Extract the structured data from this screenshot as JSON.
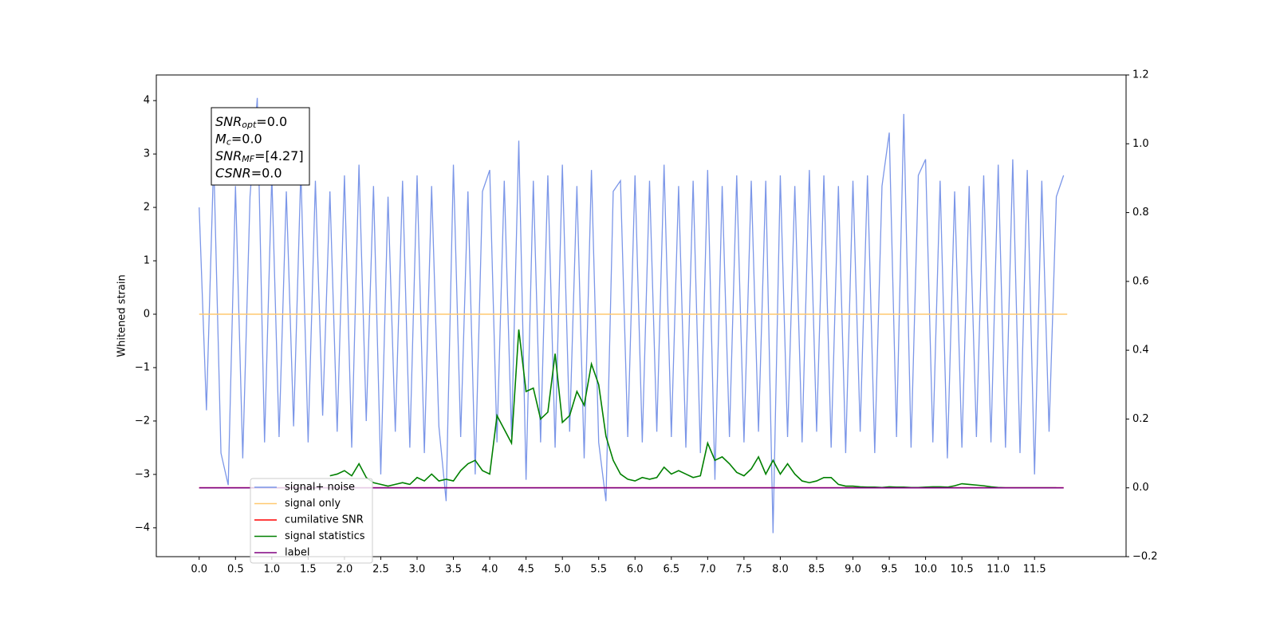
{
  "chart_data": {
    "type": "line",
    "ylabel": "Whitened strain",
    "xlim": [
      -0.59,
      12.76
    ],
    "ylim": [
      -4.54,
      4.48
    ],
    "y2lim": [
      -0.2,
      1.2
    ],
    "xticks": [
      {
        "value": 0,
        "label": "0.0"
      },
      0.5,
      {
        "value": 1,
        "label": "1.0"
      },
      1.5,
      {
        "value": 2,
        "label": "2.0"
      },
      2.5,
      {
        "value": 3,
        "label": "3.0"
      },
      3.5,
      {
        "value": 4,
        "label": "4.0"
      },
      4.5,
      {
        "value": 5,
        "label": "5.0"
      },
      5.5,
      {
        "value": 6,
        "label": "6.0"
      },
      6.5,
      {
        "value": 7,
        "label": "7.0"
      },
      7.5,
      {
        "value": 8,
        "label": "8.0"
      },
      8.5,
      {
        "value": 9,
        "label": "9.0"
      },
      9.5,
      {
        "value": 10,
        "label": "10.0"
      },
      10.5,
      {
        "value": 11,
        "label": "11.0"
      },
      11.5
    ],
    "yticks": [
      {
        "value": -4,
        "label": "−4"
      },
      {
        "value": -3,
        "label": "−3"
      },
      {
        "value": -2,
        "label": "−2"
      },
      {
        "value": -1,
        "label": "−1"
      },
      0,
      1,
      2,
      3,
      4
    ],
    "y2ticks": [
      {
        "value": -0.2,
        "label": "−0.2"
      },
      {
        "value": 0,
        "label": "0.0"
      },
      0.2,
      0.4,
      0.6,
      0.8,
      {
        "value": 1,
        "label": "1.0"
      },
      1.2
    ],
    "legend": "lower left",
    "annotation": [
      {
        "main": "SNR",
        "sub": "opt",
        "rest": "=0.0"
      },
      {
        "main": "M",
        "sub": "c",
        "rest": "=0.0"
      },
      {
        "main": "SNR",
        "sub": "MF",
        "rest": "=[4.27]"
      },
      {
        "main": "CSNR",
        "rest": "=0.0"
      }
    ],
    "series": [
      {
        "name": "signal+ noise",
        "color": "#7b96e8",
        "axis": "y",
        "x": [
          0,
          0.1,
          0.2,
          0.3,
          0.4,
          0.5,
          0.6,
          0.7,
          0.8,
          0.9,
          1,
          1.1,
          1.2,
          1.3,
          1.4,
          1.5,
          1.6,
          1.7,
          1.8,
          1.9,
          2,
          2.1,
          2.2,
          2.3,
          2.4,
          2.5,
          2.6,
          2.7,
          2.8,
          2.9,
          3,
          3.1,
          3.2,
          3.3,
          3.4,
          3.5,
          3.6,
          3.7,
          3.8,
          3.9,
          4,
          4.1,
          4.2,
          4.3,
          4.4,
          4.5,
          4.6,
          4.7,
          4.8,
          4.9,
          5,
          5.1,
          5.2,
          5.3,
          5.4,
          5.5,
          5.6,
          5.7,
          5.8,
          5.9,
          6,
          6.1,
          6.2,
          6.3,
          6.4,
          6.5,
          6.6,
          6.7,
          6.8,
          6.9,
          7,
          7.1,
          7.2,
          7.3,
          7.4,
          7.5,
          7.6,
          7.7,
          7.8,
          7.9,
          8,
          8.1,
          8.2,
          8.3,
          8.4,
          8.5,
          8.6,
          8.7,
          8.8,
          8.9,
          9,
          9.1,
          9.2,
          9.3,
          9.4,
          9.5,
          9.6,
          9.7,
          9.8,
          9.9,
          10,
          10.1,
          10.2,
          10.3,
          10.4,
          10.5,
          10.6,
          10.7,
          10.8,
          10.9,
          11,
          11.1,
          11.2,
          11.3,
          11.4,
          11.5,
          11.6,
          11.7,
          11.8,
          11.9
        ],
        "values": [
          2.0,
          -1.8,
          2.9,
          -2.6,
          -3.2,
          2.4,
          -2.7,
          2.2,
          4.05,
          -2.4,
          2.6,
          -2.3,
          2.3,
          -2.1,
          2.7,
          -2.4,
          2.5,
          -1.9,
          2.3,
          -2.2,
          2.6,
          -2.5,
          2.8,
          -2.0,
          2.4,
          -3.0,
          2.2,
          -2.2,
          2.5,
          -2.5,
          2.6,
          -2.6,
          2.4,
          -2.1,
          -3.5,
          2.8,
          -2.3,
          2.3,
          -3.0,
          2.3,
          2.7,
          -2.4,
          2.5,
          -2.3,
          3.25,
          -3.1,
          2.5,
          -2.4,
          2.6,
          -2.5,
          2.8,
          -2.2,
          2.4,
          -2.7,
          2.7,
          -2.4,
          -3.5,
          2.3,
          2.5,
          -2.3,
          2.6,
          -2.4,
          2.5,
          -2.2,
          2.8,
          -2.3,
          2.4,
          -2.5,
          2.5,
          -2.6,
          2.7,
          -3.1,
          2.4,
          -2.3,
          2.6,
          -2.4,
          2.5,
          -2.2,
          2.5,
          -4.1,
          2.6,
          -2.3,
          2.4,
          -2.4,
          2.7,
          -2.2,
          2.6,
          -2.5,
          2.4,
          -2.6,
          2.5,
          -2.2,
          2.6,
          -2.6,
          2.4,
          3.4,
          -2.3,
          3.75,
          -2.5,
          2.6,
          2.9,
          -2.4,
          2.5,
          -2.7,
          2.3,
          -2.5,
          2.4,
          -2.3,
          2.6,
          -2.4,
          2.8,
          -2.5,
          2.9,
          -2.6,
          2.7,
          -3.0,
          2.5,
          -2.2,
          2.2,
          2.6
        ]
      },
      {
        "name": "signal only",
        "color": "#ffc970",
        "axis": "y",
        "x": [
          0,
          11.95
        ],
        "values": [
          0,
          0
        ]
      },
      {
        "name": "cumilative SNR",
        "color": "#ff0000",
        "axis": "y2",
        "x": [
          0,
          11.9
        ],
        "values": [
          0,
          0
        ]
      },
      {
        "name": "signal statistics",
        "color": "#008000",
        "axis": "y2",
        "x": [
          1.8,
          1.9,
          2,
          2.1,
          2.2,
          2.3,
          2.4,
          2.5,
          2.6,
          2.7,
          2.8,
          2.9,
          3,
          3.1,
          3.2,
          3.3,
          3.4,
          3.5,
          3.6,
          3.7,
          3.8,
          3.9,
          4,
          4.1,
          4.2,
          4.3,
          4.4,
          4.5,
          4.6,
          4.7,
          4.8,
          4.9,
          5,
          5.1,
          5.2,
          5.3,
          5.4,
          5.5,
          5.6,
          5.7,
          5.8,
          5.9,
          6,
          6.1,
          6.2,
          6.3,
          6.4,
          6.5,
          6.6,
          6.7,
          6.8,
          6.9,
          7,
          7.1,
          7.2,
          7.3,
          7.4,
          7.5,
          7.6,
          7.7,
          7.8,
          7.9,
          8,
          8.1,
          8.2,
          8.3,
          8.4,
          8.5,
          8.6,
          8.7,
          8.8,
          8.9,
          9,
          9.1,
          9.2,
          9.3,
          9.4,
          9.5,
          9.6,
          9.7,
          9.8,
          9.9,
          10,
          10.1,
          10.2,
          10.3,
          10.4,
          10.5,
          10.6,
          10.7,
          10.8,
          10.9,
          11,
          11.1,
          11.2,
          11.3,
          11.4,
          11.5,
          11.6,
          11.7,
          11.8
        ],
        "values": [
          0.035,
          0.04,
          0.05,
          0.035,
          0.07,
          0.03,
          0.015,
          0.01,
          0.005,
          0.01,
          0.015,
          0.01,
          0.03,
          0.02,
          0.04,
          0.02,
          0.025,
          0.02,
          0.05,
          0.07,
          0.08,
          0.05,
          0.04,
          0.21,
          0.17,
          0.13,
          0.46,
          0.28,
          0.29,
          0.2,
          0.22,
          0.39,
          0.19,
          0.21,
          0.28,
          0.24,
          0.36,
          0.3,
          0.15,
          0.08,
          0.04,
          0.025,
          0.02,
          0.03,
          0.025,
          0.03,
          0.06,
          0.04,
          0.05,
          0.04,
          0.03,
          0.035,
          0.13,
          0.08,
          0.09,
          0.07,
          0.045,
          0.035,
          0.055,
          0.09,
          0.04,
          0.08,
          0.04,
          0.07,
          0.04,
          0.02,
          0.015,
          0.02,
          0.03,
          0.03,
          0.01,
          0.005,
          0.005,
          0.003,
          0.002,
          0.002,
          0.001,
          0.003,
          0.002,
          0.002,
          0.001,
          0.001,
          0.002,
          0.003,
          0.003,
          0.002,
          0.006,
          0.012,
          0.01,
          0.008,
          0.006,
          0.003,
          0.001,
          0,
          0,
          0,
          0,
          0,
          0,
          0,
          0
        ]
      },
      {
        "name": "label",
        "color": "#800080",
        "axis": "y2",
        "x": [
          0,
          11.9
        ],
        "values": [
          0,
          0
        ]
      }
    ]
  }
}
